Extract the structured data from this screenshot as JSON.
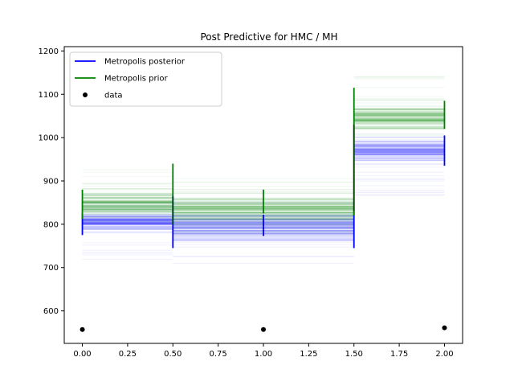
{
  "chart_data": {
    "type": "line",
    "title": "Post Predictive  for HMC / MH",
    "xlabel": "",
    "ylabel": "",
    "xlim": [
      -0.1,
      2.1
    ],
    "ylim": [
      525,
      1210
    ],
    "x_ticks": [
      0.0,
      0.25,
      0.5,
      0.75,
      1.0,
      1.25,
      1.5,
      1.75,
      2.0
    ],
    "x_tick_labels": [
      "0.00",
      "0.25",
      "0.50",
      "0.75",
      "1.00",
      "1.25",
      "1.50",
      "1.75",
      "2.00"
    ],
    "y_ticks": [
      600,
      700,
      800,
      900,
      1000,
      1100,
      1200
    ],
    "y_tick_labels": [
      "600",
      "700",
      "800",
      "900",
      "1000",
      "1100",
      "1200"
    ],
    "grid": false,
    "legend_position": "top-left",
    "series": [
      {
        "name": "Metropolis posterior",
        "color": "#0000ff",
        "style": "step-bands",
        "segments": [
          {
            "x": [
              0.0,
              0.5
            ],
            "low": 775,
            "high": 835,
            "faint_low": 700,
            "faint_high": 870
          },
          {
            "x": [
              0.5,
              1.5
            ],
            "low": 750,
            "high": 835,
            "faint_low": 705,
            "faint_high": 860
          },
          {
            "x": [
              1.5,
              2.0
            ],
            "low": 935,
            "high": 1005,
            "faint_low": 865,
            "faint_high": 1040
          }
        ],
        "interval_bars": [
          {
            "x": 0.0,
            "low": 775,
            "high": 825
          },
          {
            "x": 0.5,
            "low": 745,
            "high": 865
          },
          {
            "x": 1.0,
            "low": 773,
            "high": 822
          },
          {
            "x": 1.5,
            "low": 745,
            "high": 1030
          },
          {
            "x": 2.0,
            "low": 935,
            "high": 1005
          }
        ]
      },
      {
        "name": "Metropolis prior",
        "color": "#008000",
        "style": "step-bands",
        "segments": [
          {
            "x": [
              0.0,
              0.5
            ],
            "low": 805,
            "high": 885,
            "faint_low": 790,
            "faint_high": 935
          },
          {
            "x": [
              0.5,
              1.5
            ],
            "low": 790,
            "high": 880,
            "faint_low": 775,
            "faint_high": 920
          },
          {
            "x": [
              1.5,
              2.0
            ],
            "low": 1005,
            "high": 1085,
            "faint_low": 990,
            "faint_high": 1145
          }
        ],
        "interval_bars": [
          {
            "x": 0.0,
            "low": 812,
            "high": 880
          },
          {
            "x": 0.5,
            "low": 800,
            "high": 940
          },
          {
            "x": 1.0,
            "low": 825,
            "high": 880
          },
          {
            "x": 1.5,
            "low": 820,
            "high": 1115
          },
          {
            "x": 2.0,
            "low": 1020,
            "high": 1085
          }
        ]
      },
      {
        "name": "data",
        "color": "#000000",
        "style": "scatter",
        "x": [
          0.0,
          1.0,
          2.0
        ],
        "y": [
          557,
          557,
          561
        ]
      }
    ]
  }
}
